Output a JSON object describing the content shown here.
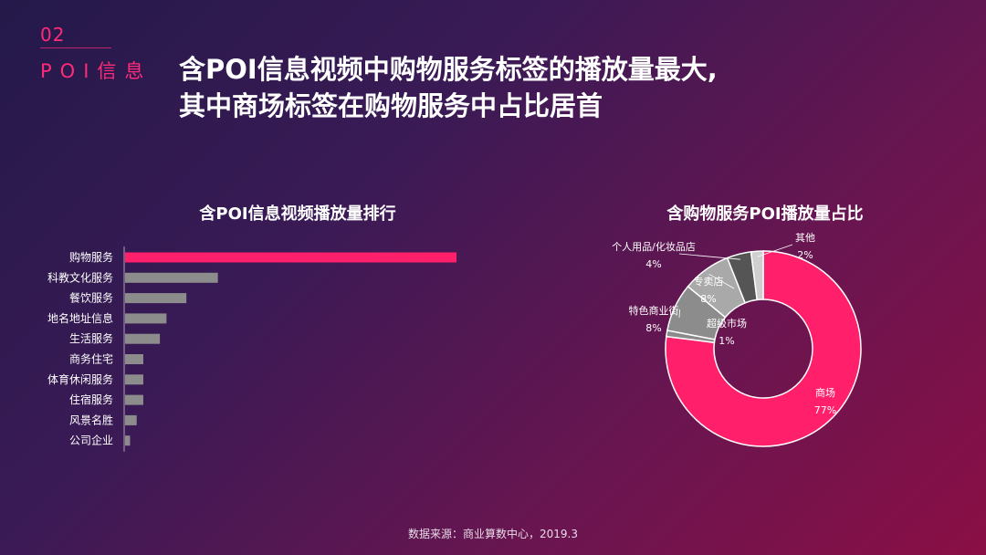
{
  "section": {
    "number": "02",
    "name": "POI信息"
  },
  "headline": {
    "line1": "含POI信息视频中购物服务标签的播放量最大,",
    "line2": "其中商场标签在购物服务中占比居首"
  },
  "source": "数据来源：商业算数中心，2019.3",
  "colors": {
    "accent": "#ff1f6b",
    "bar_gray": "#8c8c8c"
  },
  "chart_data": [
    {
      "type": "bar",
      "orientation": "horizontal",
      "title": "含POI信息视频播放量排行",
      "categories": [
        "购物服务",
        "科教文化服务",
        "餐饮服务",
        "地名地址信息",
        "生活服务",
        "商务住宅",
        "体育休闲服务",
        "住宿服务",
        "风景名胜",
        "公司企业"
      ],
      "values": [
        100,
        28,
        18.5,
        12.5,
        10.5,
        5.5,
        5.5,
        5.5,
        3.5,
        1.5
      ],
      "highlight_index": 0
    },
    {
      "type": "pie",
      "variant": "donut",
      "title": "含购物服务POI播放量占比",
      "slices": [
        {
          "label": "商场",
          "pct": "77%",
          "value": 77,
          "color": "#ff1f6b"
        },
        {
          "label": "超级市场",
          "pct": "1%",
          "value": 1,
          "color": "#8a8a8a"
        },
        {
          "label": "特色商业街",
          "pct": "8%",
          "value": 8,
          "color": "#8c8c8c"
        },
        {
          "label": "专卖店",
          "pct": "8%",
          "value": 8,
          "color": "#a9a9a9"
        },
        {
          "label": "个人用品/化妆品店",
          "pct": "4%",
          "value": 4,
          "color": "#555555"
        },
        {
          "label": "其他",
          "pct": "2%",
          "value": 2,
          "color": "#cfcfcf"
        }
      ]
    }
  ]
}
